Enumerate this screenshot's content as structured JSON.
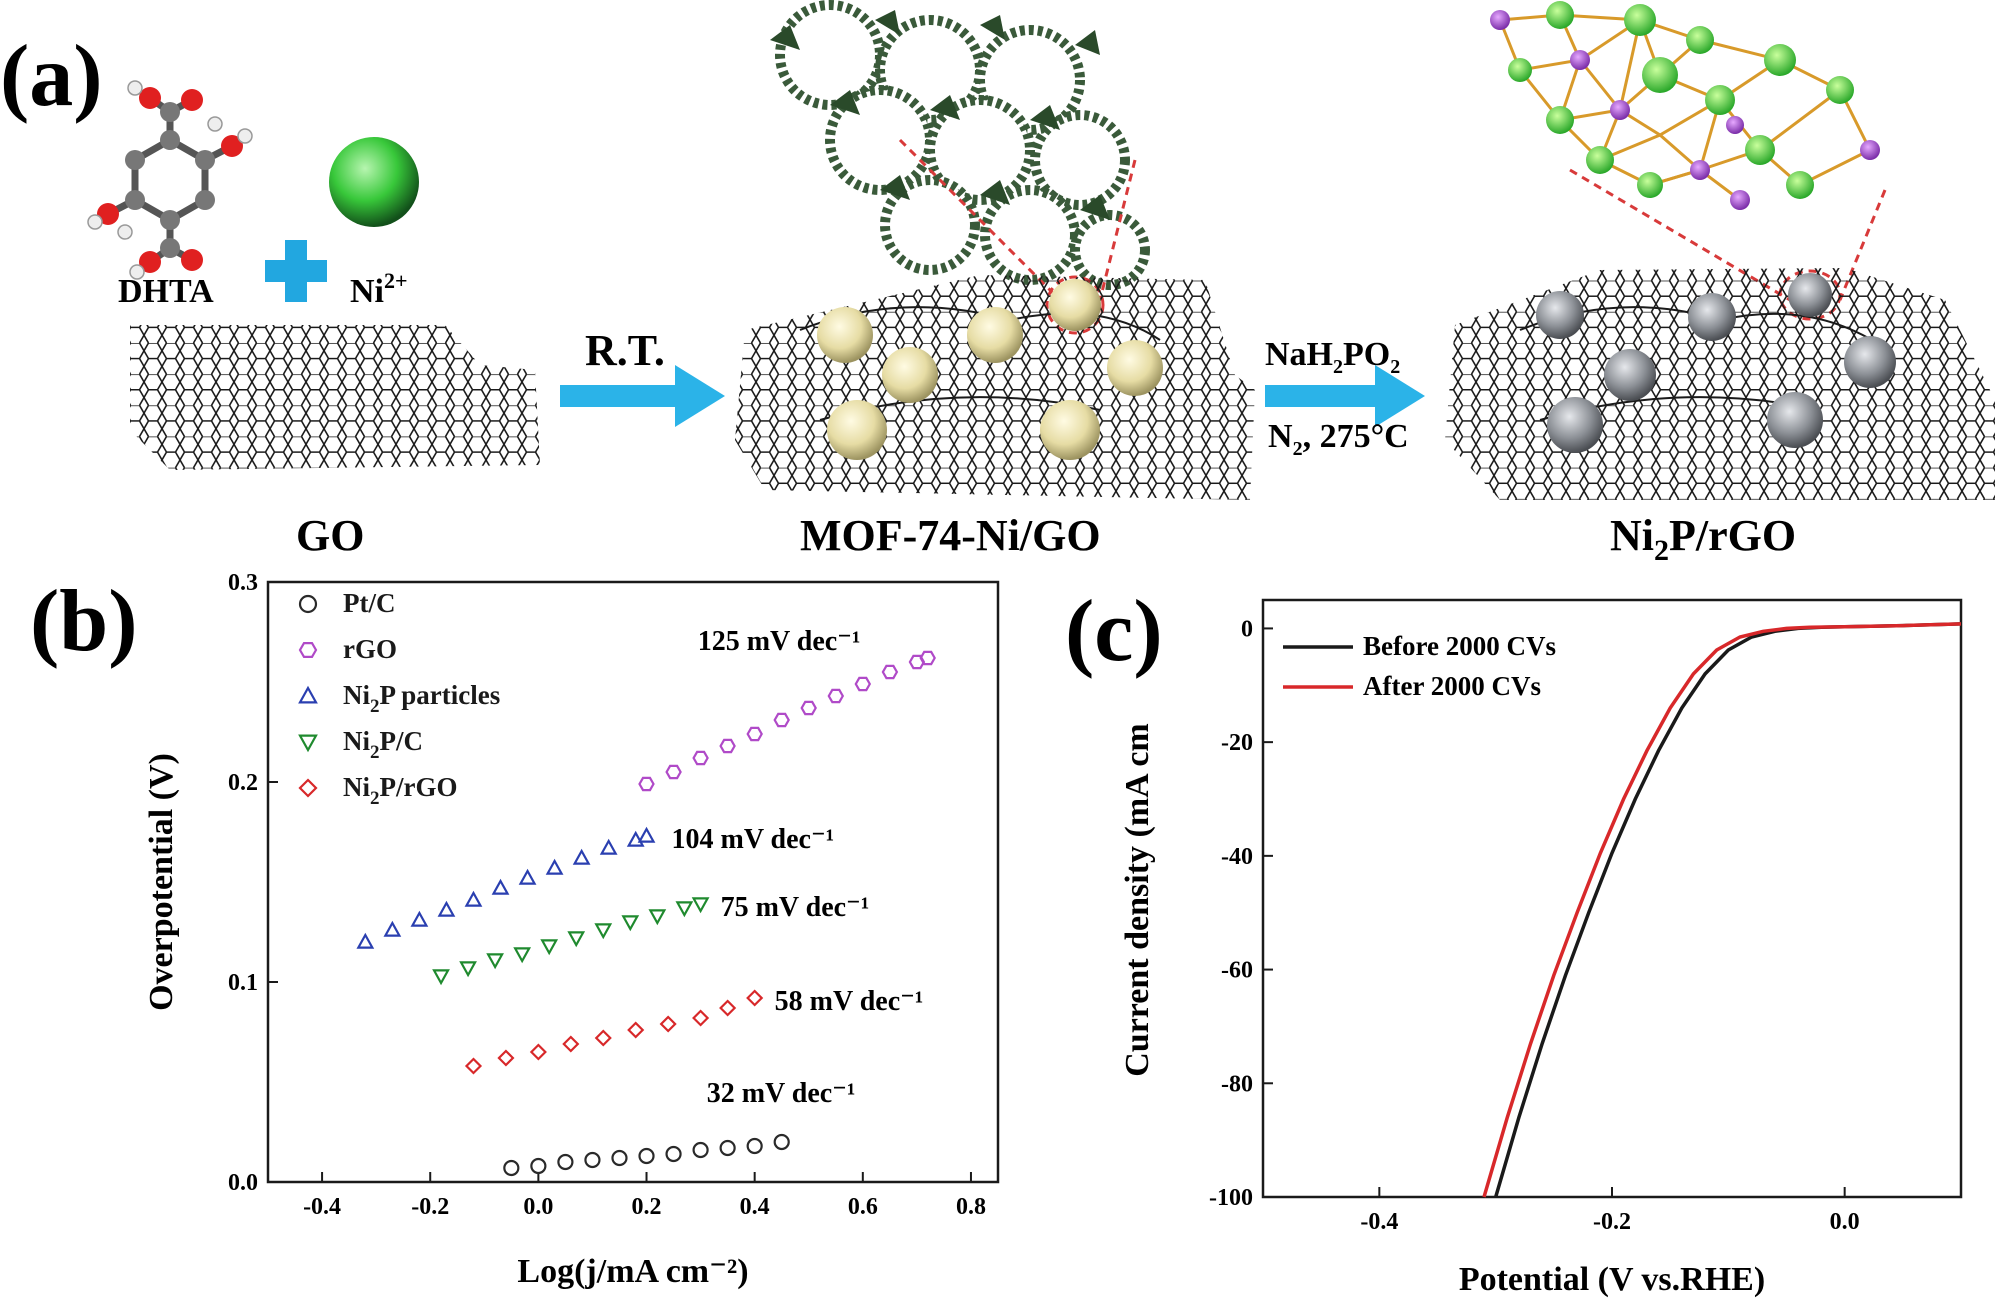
{
  "panel_a": {
    "letter": "(a)",
    "dhta_label": "DHTA",
    "ni_label_base": "Ni",
    "ni_label_sup": "2+",
    "go_label": "GO",
    "step1_label": "R.T.",
    "mof_label": "MOF-74-Ni/GO",
    "step2_reagent_parts": [
      "NaH",
      "2",
      "PO",
      "2"
    ],
    "step2_conditions_parts": [
      "N",
      "2",
      ", 275°C"
    ],
    "product_label_parts": [
      "Ni",
      "2",
      "P/rGO"
    ],
    "colors": {
      "arrow": "#2bb3e8",
      "plus": "#22a7e0",
      "ni_sphere": "#3bd13b",
      "mof_particle": "#e8e0a8",
      "ni2p_particle": "#8a8e94"
    }
  },
  "chart_data": [
    {
      "type": "scatter",
      "panel_letter": "(b)",
      "xlabel": "Log(j/mA cm⁻²)",
      "ylabel": "Overpotential (V)",
      "xlim": [
        -0.5,
        0.85
      ],
      "ylim": [
        0.0,
        0.3
      ],
      "xticks": [
        "-0.4",
        "-0.2",
        "0.0",
        "0.2",
        "0.4",
        "0.6",
        "0.8"
      ],
      "yticks": [
        "0.0",
        "0.1",
        "0.2",
        "0.3"
      ],
      "grid": false,
      "legend_position": "top-left",
      "series": [
        {
          "name": "Pt/C",
          "marker": "circle",
          "color": "#2a2a2a",
          "x": [
            -0.05,
            0.0,
            0.05,
            0.1,
            0.15,
            0.2,
            0.25,
            0.3,
            0.35,
            0.4,
            0.45
          ],
          "y": [
            0.007,
            0.008,
            0.01,
            0.011,
            0.012,
            0.013,
            0.014,
            0.016,
            0.017,
            0.018,
            0.02
          ],
          "annotation": "32 mV dec⁻¹"
        },
        {
          "name": "rGO",
          "marker": "hexagon",
          "color": "#b04ac8",
          "x": [
            0.2,
            0.25,
            0.3,
            0.35,
            0.4,
            0.45,
            0.5,
            0.55,
            0.6,
            0.65,
            0.7,
            0.72
          ],
          "y": [
            0.199,
            0.205,
            0.212,
            0.218,
            0.224,
            0.231,
            0.237,
            0.243,
            0.249,
            0.255,
            0.26,
            0.262
          ],
          "annotation": "125 mV dec⁻¹"
        },
        {
          "name": "Ni2P particles",
          "name_parts": [
            "Ni",
            "2",
            "P particles"
          ],
          "marker": "triangle-up",
          "color": "#2a3fb0",
          "x": [
            -0.32,
            -0.27,
            -0.22,
            -0.17,
            -0.12,
            -0.07,
            -0.02,
            0.03,
            0.08,
            0.13,
            0.18,
            0.2
          ],
          "y": [
            0.12,
            0.126,
            0.131,
            0.136,
            0.141,
            0.147,
            0.152,
            0.157,
            0.162,
            0.167,
            0.171,
            0.173
          ],
          "annotation": "104 mV dec⁻¹"
        },
        {
          "name": "Ni2P/C",
          "name_parts": [
            "Ni",
            "2",
            "P/C"
          ],
          "marker": "triangle-down",
          "color": "#1f8a2e",
          "x": [
            -0.18,
            -0.13,
            -0.08,
            -0.03,
            0.02,
            0.07,
            0.12,
            0.17,
            0.22,
            0.27,
            0.3
          ],
          "y": [
            0.103,
            0.107,
            0.111,
            0.114,
            0.118,
            0.122,
            0.126,
            0.13,
            0.133,
            0.137,
            0.139
          ],
          "annotation": "75 mV dec⁻¹"
        },
        {
          "name": "Ni2P/rGO",
          "name_parts": [
            "Ni",
            "2",
            "P/rGO"
          ],
          "marker": "diamond",
          "color": "#d8282a",
          "x": [
            -0.12,
            -0.06,
            0.0,
            0.06,
            0.12,
            0.18,
            0.24,
            0.3,
            0.35,
            0.4
          ],
          "y": [
            0.058,
            0.062,
            0.065,
            0.069,
            0.072,
            0.076,
            0.079,
            0.082,
            0.087,
            0.092
          ],
          "annotation": "58 mV dec⁻¹"
        }
      ]
    },
    {
      "type": "line",
      "panel_letter": "(c)",
      "xlabel": "Potential (V vs.RHE)",
      "ylabel": "Current density (mA cm",
      "xlim": [
        -0.5,
        0.1
      ],
      "ylim": [
        -100,
        5
      ],
      "xticks": [
        "-0.4",
        "-0.2",
        "0.0"
      ],
      "yticks": [
        "0",
        "-20",
        "-40",
        "-60",
        "-80",
        "-100"
      ],
      "grid": false,
      "legend_position": "top-left",
      "series": [
        {
          "name": "Before 2000 CVs",
          "color": "#1a1a1a",
          "x": [
            -0.3,
            -0.28,
            -0.26,
            -0.24,
            -0.22,
            -0.2,
            -0.18,
            -0.16,
            -0.14,
            -0.12,
            -0.1,
            -0.08,
            -0.06,
            -0.04,
            -0.02,
            0.0,
            0.05,
            0.1
          ],
          "y": [
            -100,
            -86,
            -73,
            -61,
            -50,
            -39.5,
            -30,
            -21.5,
            -14,
            -8,
            -3.8,
            -1.5,
            -0.5,
            0.0,
            0.2,
            0.3,
            0.5,
            0.8
          ]
        },
        {
          "name": "After 2000 CVs",
          "color": "#d8282a",
          "x": [
            -0.31,
            -0.29,
            -0.27,
            -0.25,
            -0.23,
            -0.21,
            -0.19,
            -0.17,
            -0.15,
            -0.13,
            -0.11,
            -0.09,
            -0.07,
            -0.05,
            -0.03,
            0.0,
            0.05,
            0.1
          ],
          "y": [
            -100,
            -86,
            -73,
            -61,
            -50,
            -39.5,
            -30,
            -21.5,
            -14,
            -8,
            -3.8,
            -1.5,
            -0.5,
            0.0,
            0.2,
            0.3,
            0.5,
            0.8
          ]
        }
      ]
    }
  ]
}
